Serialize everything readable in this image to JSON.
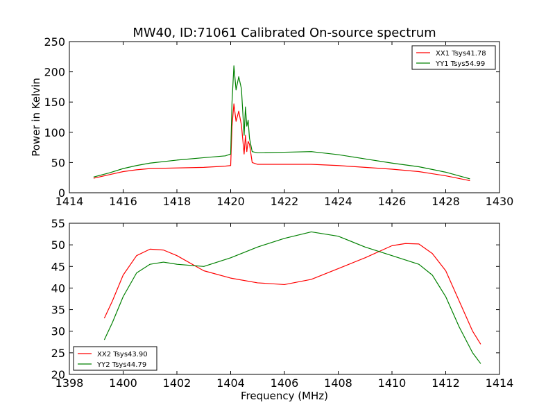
{
  "chart_data": [
    {
      "type": "line",
      "title": "MW40, ID:71061 Calibrated On-source spectrum",
      "xlabel": "",
      "ylabel": "Power in Kelvin",
      "xlim": [
        1414,
        1430
      ],
      "ylim": [
        0,
        250
      ],
      "xticks": [
        "1414",
        "1416",
        "1418",
        "1420",
        "1422",
        "1424",
        "1426",
        "1428",
        "1430"
      ],
      "yticks": [
        "0",
        "50",
        "100",
        "150",
        "200",
        "250"
      ],
      "legend_position": "top-right",
      "series": [
        {
          "name": "XX1 Tsys41.78",
          "color": "#ff0000",
          "x": [
            1414.9,
            1415.5,
            1416.0,
            1416.5,
            1417.0,
            1418.0,
            1419.0,
            1419.8,
            1420.0,
            1420.05,
            1420.12,
            1420.2,
            1420.3,
            1420.4,
            1420.5,
            1420.55,
            1420.6,
            1420.65,
            1420.7,
            1420.8,
            1421.0,
            1422.0,
            1423.0,
            1424.0,
            1425.0,
            1426.0,
            1427.0,
            1428.0,
            1428.9
          ],
          "y": [
            24,
            30,
            35,
            38,
            40,
            41,
            42,
            44,
            45,
            110,
            147,
            118,
            135,
            112,
            64,
            95,
            68,
            85,
            80,
            50,
            47,
            47,
            47,
            45,
            42,
            39,
            35,
            28,
            20
          ]
        },
        {
          "name": "YY1 Tsys54.99",
          "color": "#008000",
          "x": [
            1414.9,
            1415.5,
            1416.0,
            1416.5,
            1417.0,
            1418.0,
            1419.0,
            1419.8,
            1420.0,
            1420.05,
            1420.12,
            1420.2,
            1420.3,
            1420.4,
            1420.5,
            1420.55,
            1420.6,
            1420.65,
            1420.7,
            1420.8,
            1421.0,
            1422.0,
            1423.0,
            1424.0,
            1425.0,
            1426.0,
            1427.0,
            1428.0,
            1428.9
          ],
          "y": [
            26,
            33,
            40,
            45,
            49,
            54,
            58,
            61,
            64,
            150,
            210,
            170,
            192,
            172,
            95,
            142,
            110,
            120,
            90,
            68,
            66,
            67,
            68,
            63,
            56,
            49,
            43,
            34,
            23
          ]
        }
      ]
    },
    {
      "type": "line",
      "title": "",
      "xlabel": "Frequency (MHz)",
      "ylabel": "",
      "xlim": [
        1398,
        1414
      ],
      "ylim": [
        20,
        55
      ],
      "xticks": [
        "1398",
        "1400",
        "1402",
        "1404",
        "1406",
        "1408",
        "1410",
        "1412",
        "1414"
      ],
      "yticks": [
        "20",
        "25",
        "30",
        "35",
        "40",
        "45",
        "50",
        "55"
      ],
      "legend_position": "bottom-left",
      "series": [
        {
          "name": "XX2 Tsys43.90",
          "color": "#ff0000",
          "x": [
            1399.3,
            1399.6,
            1400.0,
            1400.5,
            1401.0,
            1401.5,
            1402.0,
            1403.0,
            1404.0,
            1405.0,
            1406.0,
            1407.0,
            1408.0,
            1409.0,
            1410.0,
            1410.5,
            1411.0,
            1411.5,
            1412.0,
            1412.5,
            1413.0,
            1413.3
          ],
          "y": [
            33,
            37,
            43,
            47.5,
            49,
            48.8,
            47.5,
            44,
            42.3,
            41.2,
            40.8,
            42,
            44.5,
            47,
            49.8,
            50.3,
            50.2,
            48,
            44,
            37,
            30,
            27
          ]
        },
        {
          "name": "YY2 Tsys44.79",
          "color": "#008000",
          "x": [
            1399.3,
            1399.6,
            1400.0,
            1400.5,
            1401.0,
            1401.5,
            1402.0,
            1403.0,
            1404.0,
            1405.0,
            1406.0,
            1407.0,
            1408.0,
            1409.0,
            1410.0,
            1411.0,
            1411.5,
            1412.0,
            1412.5,
            1413.0,
            1413.3
          ],
          "y": [
            28,
            32,
            38,
            43.5,
            45.5,
            46,
            45.5,
            45,
            47,
            49.5,
            51.5,
            53,
            52,
            49.5,
            47.5,
            45.5,
            43,
            38,
            31,
            25,
            22.5
          ]
        }
      ]
    }
  ]
}
